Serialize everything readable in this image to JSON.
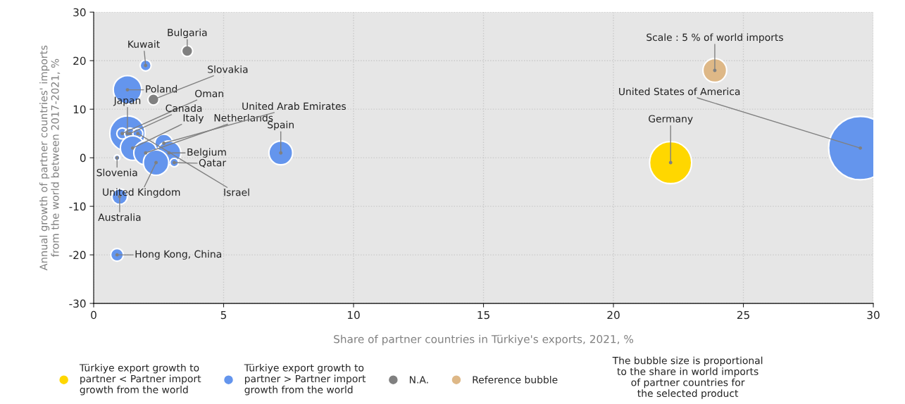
{
  "chart_data": {
    "type": "bubble",
    "xlabel": "Share of partner countries in Türkiye's exports, 2021, %",
    "ylabel": "Annual growth of partner countries' imports\nfrom the world between 2017-2021, %",
    "xlim": [
      0,
      30
    ],
    "xticks": [
      0,
      5,
      10,
      15,
      20,
      25,
      30
    ],
    "ylim": [
      -30,
      30
    ],
    "yticks": [
      -30,
      -20,
      -10,
      0,
      10,
      20,
      30
    ],
    "grid": true,
    "legend": "bottom",
    "series": [
      {
        "name": "Türkiye export growth to\npartner < Partner import\ngrowth from the world",
        "color": "#ffd700",
        "x": [
          22.2
        ],
        "values": [
          -1
        ],
        "sizes": [
          0.44
        ]
      },
      {
        "name": "Türkiye export growth to\npartner > Partner import\ngrowth from the world",
        "color": "#6495ed",
        "x": [
          29.5,
          1.3,
          2.0,
          1.3,
          1.1,
          1.4,
          1.7,
          1.5,
          2.0,
          2.7,
          2.9,
          3.1,
          2.4,
          0.9,
          1.0,
          0.9,
          7.2
        ],
        "values": [
          2,
          5,
          19,
          14,
          5,
          5,
          5,
          2,
          1,
          3,
          1,
          -1,
          -1,
          0,
          -8,
          -20,
          1
        ],
        "sizes": [
          1,
          0.31,
          0.03,
          0.2,
          0.03,
          0.03,
          0.025,
          0.15,
          0.14,
          0.08,
          0.14,
          0.018,
          0.16,
          0.008,
          0.06,
          0.04,
          0.14
        ]
      },
      {
        "name": "N.A.",
        "color": "#808080",
        "x": [
          3.6,
          2.3
        ],
        "values": [
          22,
          12
        ],
        "sizes": [
          0.03,
          0.03
        ]
      },
      {
        "name": "Reference bubble",
        "color": "#deb887",
        "x": [
          23.9
        ],
        "values": [
          18
        ],
        "sizes": [
          0.14
        ]
      }
    ],
    "annotations": [
      {
        "text": "Germany",
        "x": 22.2,
        "y": -1
      },
      {
        "text": "United States of America",
        "x": 29.5,
        "y": 2
      },
      {
        "text": "Japan",
        "x": 1.3,
        "y": 5
      },
      {
        "text": "Kuwait",
        "x": 2.0,
        "y": 19
      },
      {
        "text": "Poland",
        "x": 1.3,
        "y": 14
      },
      {
        "text": "Oman",
        "x": 1.1,
        "y": 5
      },
      {
        "text": "Canada",
        "x": 1.4,
        "y": 5
      },
      {
        "text": "Israel",
        "x": 1.7,
        "y": 5
      },
      {
        "text": "Italy",
        "x": 1.5,
        "y": 2
      },
      {
        "text": "Netherlands",
        "x": 2.0,
        "y": 1
      },
      {
        "text": "United Arab Emirates",
        "x": 2.7,
        "y": 3
      },
      {
        "text": "Belgium",
        "x": 2.9,
        "y": 1
      },
      {
        "text": "Qatar",
        "x": 3.1,
        "y": -1
      },
      {
        "text": "United Kingdom",
        "x": 2.4,
        "y": -1
      },
      {
        "text": "Slovenia",
        "x": 0.9,
        "y": 0
      },
      {
        "text": "Australia",
        "x": 1.0,
        "y": -8
      },
      {
        "text": "Hong Kong, China",
        "x": 0.9,
        "y": -20
      },
      {
        "text": "Spain",
        "x": 7.2,
        "y": 1
      },
      {
        "text": "Bulgaria",
        "x": 3.6,
        "y": 22
      },
      {
        "text": "Slovakia",
        "x": 2.3,
        "y": 12
      },
      {
        "text": "Scale : 5 % of world imports",
        "x": 23.9,
        "y": 18
      },
      "The bubble size is proportional\nto the share in world imports\nof partner countries for\nthe selected product"
    ]
  }
}
